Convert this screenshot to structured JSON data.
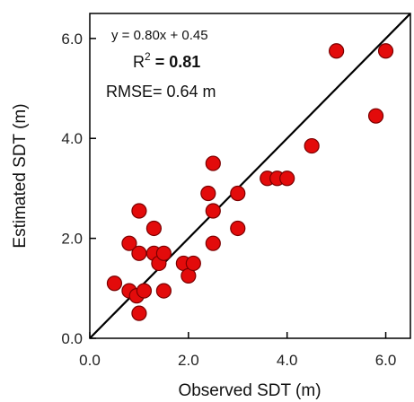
{
  "chart_data": {
    "type": "scatter",
    "title": "",
    "xlabel": "Observed SDT (m)",
    "ylabel": "Estimated SDT (m)",
    "xlim": [
      0,
      6.5
    ],
    "ylim": [
      0,
      6.5
    ],
    "xticks": [
      0,
      2,
      4,
      6
    ],
    "yticks": [
      0,
      2,
      4,
      6
    ],
    "xtick_labels": [
      "0.0",
      "2.0",
      "4.0",
      "6.0"
    ],
    "ytick_labels": [
      "0.0",
      "2.0",
      "4.0",
      "6.0"
    ],
    "grid": false,
    "marker_color": "#e30b0b",
    "marker_edge": "#7a0000",
    "line_color": "#000000",
    "annotations": {
      "equation": "y = 0.80x + 0.45",
      "r2_prefix": "R",
      "r2_sup": "2",
      "r2_value": " = 0.81",
      "rmse": "RMSE= 0.64 m"
    },
    "fit_line": {
      "slope": 1.0,
      "intercept": 0.0
    },
    "points": [
      {
        "x": 0.5,
        "y": 1.1
      },
      {
        "x": 0.8,
        "y": 0.95
      },
      {
        "x": 0.8,
        "y": 1.9
      },
      {
        "x": 0.95,
        "y": 0.85
      },
      {
        "x": 1.0,
        "y": 0.5
      },
      {
        "x": 1.0,
        "y": 1.7
      },
      {
        "x": 1.0,
        "y": 2.55
      },
      {
        "x": 1.1,
        "y": 0.95
      },
      {
        "x": 1.3,
        "y": 1.7
      },
      {
        "x": 1.3,
        "y": 2.2
      },
      {
        "x": 1.4,
        "y": 1.5
      },
      {
        "x": 1.5,
        "y": 1.7
      },
      {
        "x": 1.5,
        "y": 0.95
      },
      {
        "x": 1.9,
        "y": 1.5
      },
      {
        "x": 2.0,
        "y": 1.25
      },
      {
        "x": 2.1,
        "y": 1.5
      },
      {
        "x": 2.4,
        "y": 2.9
      },
      {
        "x": 2.5,
        "y": 2.55
      },
      {
        "x": 2.5,
        "y": 3.5
      },
      {
        "x": 2.5,
        "y": 1.9
      },
      {
        "x": 3.0,
        "y": 2.9
      },
      {
        "x": 3.0,
        "y": 2.2
      },
      {
        "x": 3.6,
        "y": 3.2
      },
      {
        "x": 3.8,
        "y": 3.2
      },
      {
        "x": 4.0,
        "y": 3.2
      },
      {
        "x": 4.5,
        "y": 3.85
      },
      {
        "x": 5.0,
        "y": 5.75
      },
      {
        "x": 5.8,
        "y": 4.45
      },
      {
        "x": 6.0,
        "y": 5.75
      }
    ]
  }
}
